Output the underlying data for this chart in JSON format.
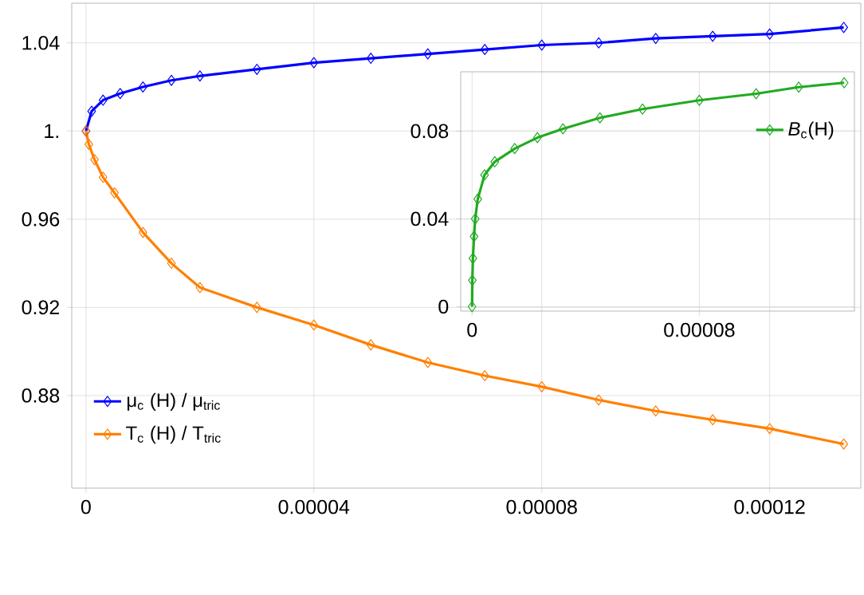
{
  "chart_data": [
    {
      "type": "line",
      "marker": "diamond",
      "line_style": "solid",
      "grid": true,
      "legend": "bottom left",
      "xlim": [
        -2.5e-06,
        0.000136
      ],
      "ylim": [
        0.838,
        1.058
      ],
      "xticks": [
        0,
        {
          "value": 4e-05,
          "label": "0.00004"
        },
        {
          "value": 8e-05,
          "label": "0.00008"
        },
        {
          "value": 0.00012,
          "label": "0.00012"
        }
      ],
      "yticks": [
        0.88,
        0.92,
        0.96,
        {
          "value": 1,
          "label": "1."
        },
        1.04
      ],
      "series": [
        {
          "name": "μ$_{c}$ (H) / μ$_{tric}$",
          "color": "#0000ff",
          "x": [
            0,
            1e-06,
            3e-06,
            6e-06,
            1e-05,
            1.5e-05,
            2e-05,
            3e-05,
            4e-05,
            5e-05,
            6e-05,
            7e-05,
            8e-05,
            9e-05,
            0.0001,
            0.00011,
            0.00012,
            0.000133
          ],
          "values": [
            1.0,
            1.009,
            1.014,
            1.017,
            1.02,
            1.023,
            1.025,
            1.028,
            1.031,
            1.033,
            1.035,
            1.037,
            1.039,
            1.04,
            1.042,
            1.043,
            1.044,
            1.047
          ]
        },
        {
          "name": "T$_{c}$ (H) / T$_{tric}$",
          "color": "#ff8000",
          "x": [
            0,
            5e-07,
            1.5e-06,
            3e-06,
            5e-06,
            1e-05,
            1.5e-05,
            2e-05,
            3e-05,
            4e-05,
            5e-05,
            6e-05,
            7e-05,
            8e-05,
            9e-05,
            0.0001,
            0.00011,
            0.00012,
            0.000133
          ],
          "values": [
            1.0,
            0.994,
            0.987,
            0.979,
            0.972,
            0.954,
            0.94,
            0.929,
            0.92,
            0.912,
            0.903,
            0.895,
            0.889,
            0.884,
            0.878,
            0.873,
            0.869,
            0.865,
            0.858
          ]
        }
      ]
    },
    {
      "type": "line",
      "marker": "diamond",
      "line_style": "solid",
      "grid": true,
      "legend": "top right",
      "xlim": [
        -4e-06,
        0.0001346
      ],
      "ylim": [
        -0.002,
        0.107
      ],
      "xticks": [
        0,
        {
          "value": 8e-05,
          "label": "0.00008"
        }
      ],
      "yticks": [
        0,
        0.04,
        0.08
      ],
      "series": [
        {
          "name": "*B*$_{c}$(H)",
          "color": "#22aa22",
          "x": [
            0,
            1e-07,
            3e-07,
            7e-07,
            1.1e-06,
            2e-06,
            4.4e-06,
            8e-06,
            1.5e-05,
            2.3e-05,
            3.2e-05,
            4.5e-05,
            6e-05,
            8e-05,
            0.0001,
            0.000115,
            0.000131
          ],
          "values": [
            0,
            0.012,
            0.022,
            0.032,
            0.04,
            0.049,
            0.06,
            0.066,
            0.072,
            0.077,
            0.081,
            0.086,
            0.09,
            0.094,
            0.097,
            0.1,
            0.102
          ]
        }
      ]
    }
  ]
}
